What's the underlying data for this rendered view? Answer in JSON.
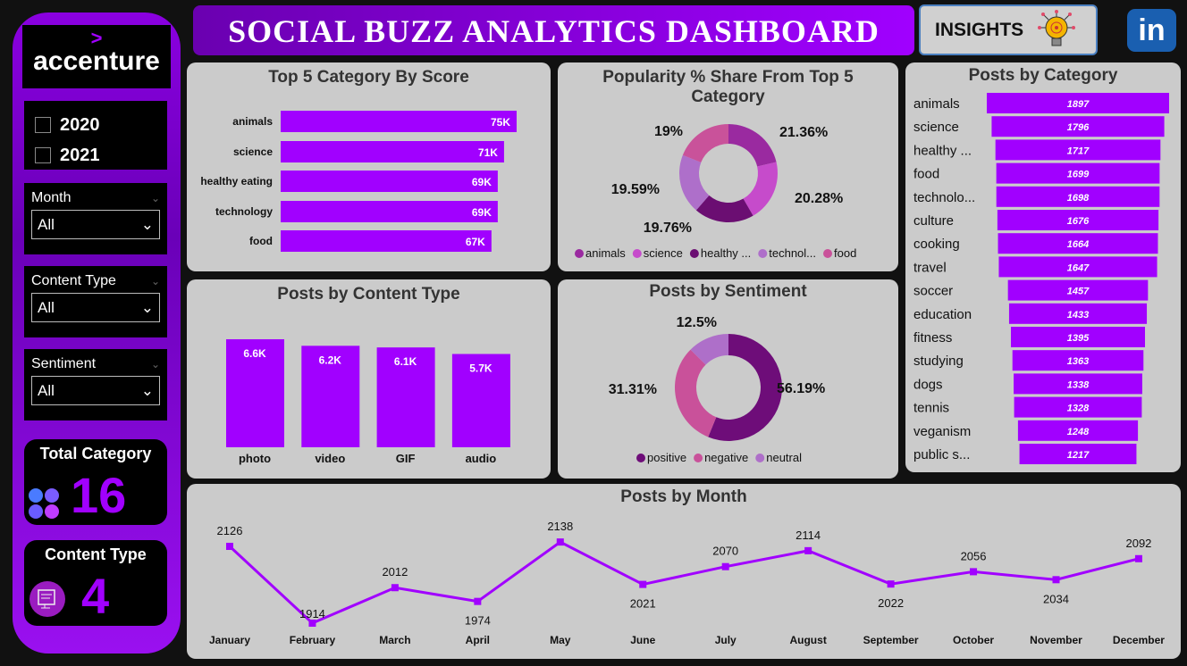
{
  "header": {
    "title": "SOCIAL BUZZ ANALYTICS DASHBOARD",
    "insights_label": "INSIGHTS",
    "linkedin_label": "in"
  },
  "sidebar": {
    "logo_text": "accenture",
    "logo_mark": ">",
    "years": [
      {
        "label": "2020",
        "checked": false
      },
      {
        "label": "2021",
        "checked": false
      }
    ],
    "slicers": [
      {
        "label": "Month",
        "value": "All"
      },
      {
        "label": "Content Type",
        "value": "All"
      },
      {
        "label": "Sentiment",
        "value": "All"
      }
    ],
    "cards": [
      {
        "title": "Total Category",
        "value": "16"
      },
      {
        "title": "Content Type",
        "value": "4"
      }
    ]
  },
  "colors": {
    "accent": "#a100ff",
    "panel": "#cbcbcb"
  },
  "chart_data": [
    {
      "id": "top5",
      "type": "bar",
      "orientation": "horizontal",
      "title": "Top 5 Category By Score",
      "categories": [
        "animals",
        "science",
        "healthy eating",
        "technology",
        "food"
      ],
      "values": [
        75,
        71,
        69,
        69,
        67
      ],
      "labels": [
        "75K",
        "71K",
        "69K",
        "69K",
        "67K"
      ],
      "unit": "K"
    },
    {
      "id": "share",
      "type": "pie",
      "donut": true,
      "title": "Popularity % Share From Top 5 Category",
      "categories": [
        "animals",
        "science",
        "healthy eating",
        "technology",
        "food"
      ],
      "legend": [
        "animals",
        "science",
        "healthy ...",
        "technol...",
        "food"
      ],
      "values": [
        21.36,
        20.28,
        19.76,
        19.59,
        19
      ],
      "labels": [
        "21.36%",
        "20.28%",
        "19.76%",
        "19.59%",
        "19%"
      ],
      "colors": [
        "#9a2aa0",
        "#c64bcb",
        "#6b0e72",
        "#ae6fca",
        "#c9529a"
      ],
      "legend_placement": "bottom"
    },
    {
      "id": "bycat",
      "type": "bar",
      "orientation": "funnel",
      "title": "Posts by Category",
      "categories": [
        "animals",
        "science",
        "healthy ...",
        "food",
        "technolo...",
        "culture",
        "cooking",
        "travel",
        "soccer",
        "education",
        "fitness",
        "studying",
        "dogs",
        "tennis",
        "veganism",
        "public s..."
      ],
      "values": [
        1897,
        1796,
        1717,
        1699,
        1698,
        1676,
        1664,
        1647,
        1457,
        1433,
        1395,
        1363,
        1338,
        1328,
        1248,
        1217
      ]
    },
    {
      "id": "content",
      "type": "bar",
      "title": "Posts by Content Type",
      "categories": [
        "photo",
        "video",
        "GIF",
        "audio"
      ],
      "values": [
        6.6,
        6.2,
        6.1,
        5.7
      ],
      "labels": [
        "6.6K",
        "6.2K",
        "6.1K",
        "5.7K"
      ],
      "unit": "K"
    },
    {
      "id": "sentiment",
      "type": "pie",
      "donut": true,
      "title": "Posts by Sentiment",
      "categories": [
        "positive",
        "negative",
        "neutral"
      ],
      "values": [
        56.19,
        31.31,
        12.5
      ],
      "labels": [
        "56.19%",
        "31.31%",
        "12.5%"
      ],
      "colors": [
        "#6e0d79",
        "#c9519a",
        "#ae6fc9"
      ],
      "legend_placement": "bottom"
    },
    {
      "id": "month",
      "type": "line",
      "title": "Posts by Month",
      "x": [
        "January",
        "February",
        "March",
        "April",
        "May",
        "June",
        "July",
        "August",
        "September",
        "October",
        "November",
        "December"
      ],
      "y": [
        2126,
        1914,
        2012,
        1974,
        2138,
        2021,
        2070,
        2114,
        2022,
        2056,
        2034,
        2092
      ]
    }
  ]
}
